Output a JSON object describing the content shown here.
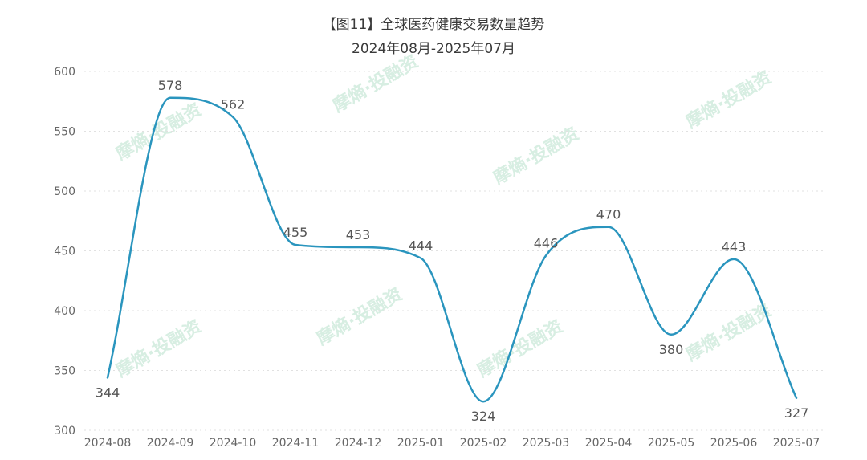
{
  "title": "【图11】全球医药健康交易数量趋势",
  "subtitle": "2024年08月-2025年07月",
  "watermark": "摩熵·投融资",
  "colors": {
    "line": "#2a95be",
    "grid": "#e1e1e1",
    "watermark": "#d7eee2"
  },
  "chart_data": {
    "type": "line",
    "title": "【图11】全球医药健康交易数量趋势",
    "subtitle": "2024年08月-2025年07月",
    "categories": [
      "2024-08",
      "2024-09",
      "2024-10",
      "2024-11",
      "2024-12",
      "2025-01",
      "2025-02",
      "2025-03",
      "2025-04",
      "2025-05",
      "2025-06",
      "2025-07"
    ],
    "values": [
      344,
      578,
      562,
      455,
      453,
      444,
      324,
      446,
      470,
      380,
      443,
      327
    ],
    "ylim": [
      300,
      600
    ],
    "yticks": [
      300,
      350,
      400,
      450,
      500,
      550,
      600
    ],
    "grid": true,
    "smooth": true,
    "data_labels": true
  }
}
